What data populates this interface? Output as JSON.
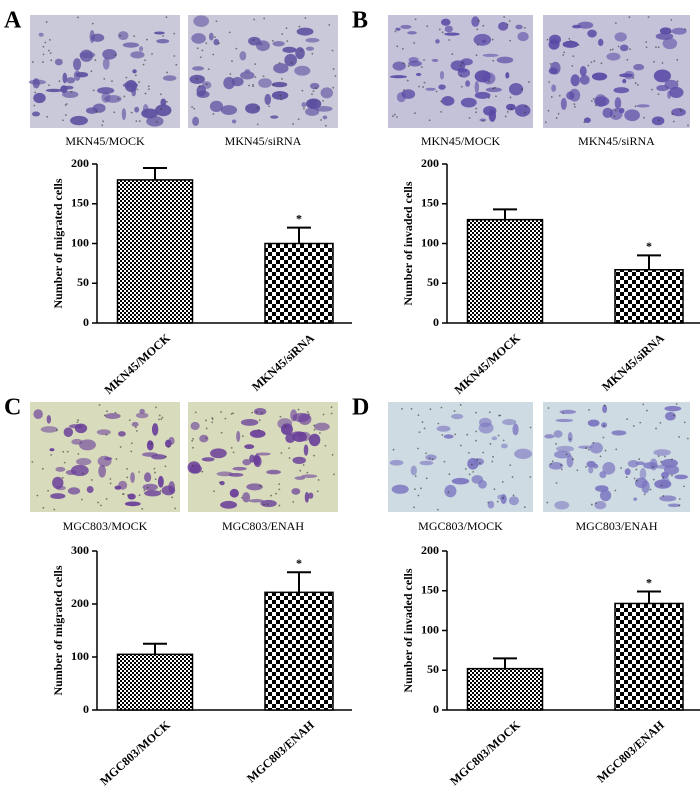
{
  "chart_data": [
    {
      "type": "bar",
      "panel": "A",
      "image_labels": [
        "MKN45/MOCK",
        "MKN45/siRNA"
      ],
      "ylabel": "Number of migrated cells",
      "categories": [
        "MKN45/MOCK",
        "MKN45/siRNA"
      ],
      "values": [
        180,
        100
      ],
      "errors": [
        15,
        20
      ],
      "annotation": "*",
      "ylim": [
        0,
        200
      ],
      "yticks": [
        0,
        50,
        100,
        150,
        200
      ]
    },
    {
      "type": "bar",
      "panel": "B",
      "image_labels": [
        "MKN45/MOCK",
        "MKN45/siRNA"
      ],
      "ylabel": "Number of invaded cells",
      "categories": [
        "MKN45/MOCK",
        "MKN45/siRNA"
      ],
      "values": [
        130,
        67
      ],
      "errors": [
        13,
        18
      ],
      "annotation": "*",
      "ylim": [
        0,
        200
      ],
      "yticks": [
        0,
        50,
        100,
        150,
        200
      ]
    },
    {
      "type": "bar",
      "panel": "C",
      "image_labels": [
        "MGC803/MOCK",
        "MGC803/ENAH"
      ],
      "ylabel": "Number of migrated cells",
      "categories": [
        "MGC803/MOCK",
        "MGC803/ENAH"
      ],
      "values": [
        105,
        222
      ],
      "errors": [
        20,
        38
      ],
      "annotation": "*",
      "ylim": [
        0,
        300
      ],
      "yticks": [
        0,
        100,
        200,
        300
      ]
    },
    {
      "type": "bar",
      "panel": "D",
      "image_labels": [
        "MGC803/MOCK",
        "MGC803/ENAH"
      ],
      "ylabel": "Number of invaded cells",
      "categories": [
        "MGC803/MOCK",
        "MGC803/ENAH"
      ],
      "values": [
        52,
        134
      ],
      "errors": [
        13,
        15
      ],
      "annotation": "*",
      "ylim": [
        0,
        200
      ],
      "yticks": [
        0,
        50,
        100,
        150,
        200
      ]
    }
  ]
}
